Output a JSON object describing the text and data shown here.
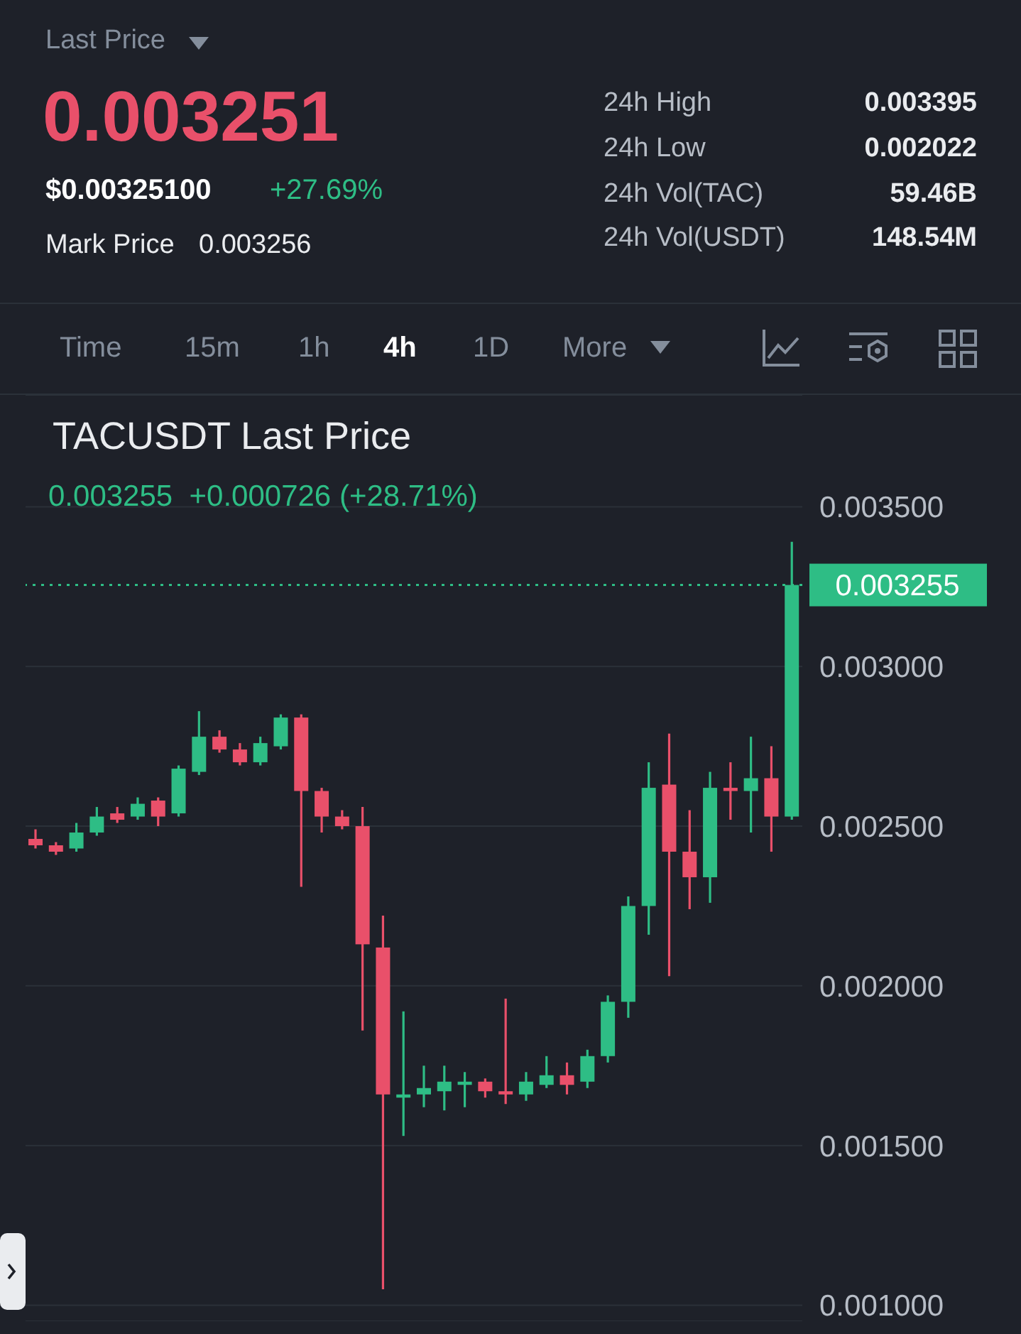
{
  "chart_data": {
    "type": "candlestick",
    "title": "TACUSDT Last Price",
    "subtitle": "0.003255  +0.000726 (+28.71%)",
    "annotations": [
      "Last Price",
      "0.003251",
      "$0.00325100",
      "+27.69%",
      "Mark Price",
      "0.003256",
      "24h High",
      "0.003395",
      "24h Low",
      "0.002022",
      "24h Vol(TAC)",
      "59.46B",
      "24h Vol(USDT)",
      "148.54M",
      "Time",
      "15m",
      "1h",
      "4h",
      "1D",
      "More"
    ],
    "categories": [
      null,
      null,
      null,
      null,
      null,
      null,
      null,
      null,
      null,
      null,
      null,
      null,
      null,
      null,
      null,
      null,
      null,
      null,
      null,
      null,
      null,
      null,
      null,
      null,
      null,
      null,
      null,
      null,
      null,
      null,
      null,
      null,
      null,
      null,
      null,
      null,
      null,
      null
    ],
    "ohlc": [
      [
        0.00246,
        0.00249,
        0.00243,
        0.00244
      ],
      [
        0.00244,
        0.00245,
        0.00241,
        0.00242
      ],
      [
        0.00243,
        0.00251,
        0.00242,
        0.00248
      ],
      [
        0.00248,
        0.00256,
        0.00247,
        0.00253
      ],
      [
        0.00254,
        0.00256,
        0.00251,
        0.00252
      ],
      [
        0.00253,
        0.00259,
        0.00252,
        0.00257
      ],
      [
        0.00258,
        0.00259,
        0.0025,
        0.00253
      ],
      [
        0.00254,
        0.00269,
        0.00253,
        0.00268
      ],
      [
        0.00267,
        0.00286,
        0.00266,
        0.00278
      ],
      [
        0.00278,
        0.0028,
        0.00273,
        0.00274
      ],
      [
        0.00274,
        0.00276,
        0.00269,
        0.0027
      ],
      [
        0.0027,
        0.00278,
        0.00269,
        0.00276
      ],
      [
        0.00275,
        0.00285,
        0.00274,
        0.00284
      ],
      [
        0.00284,
        0.00285,
        0.00231,
        0.00261
      ],
      [
        0.00261,
        0.00262,
        0.00248,
        0.00253
      ],
      [
        0.00253,
        0.00255,
        0.00249,
        0.0025
      ],
      [
        0.0025,
        0.00256,
        0.00186,
        0.00213
      ],
      [
        0.00212,
        0.00222,
        0.00105,
        0.00166
      ],
      [
        0.00165,
        0.00192,
        0.00153,
        0.00166
      ],
      [
        0.00166,
        0.00175,
        0.00162,
        0.00168
      ],
      [
        0.00167,
        0.00175,
        0.00161,
        0.0017
      ],
      [
        0.00169,
        0.00173,
        0.00162,
        0.0017
      ],
      [
        0.0017,
        0.00171,
        0.00165,
        0.00167
      ],
      [
        0.00167,
        0.00196,
        0.00163,
        0.00166
      ],
      [
        0.00166,
        0.00173,
        0.00164,
        0.0017
      ],
      [
        0.00169,
        0.00178,
        0.00168,
        0.00172
      ],
      [
        0.00172,
        0.00176,
        0.00166,
        0.00169
      ],
      [
        0.0017,
        0.0018,
        0.00168,
        0.00178
      ],
      [
        0.00178,
        0.00197,
        0.00176,
        0.00195
      ],
      [
        0.00195,
        0.00228,
        0.0019,
        0.00225
      ],
      [
        0.00225,
        0.0027,
        0.00216,
        0.00262
      ],
      [
        0.00263,
        0.00279,
        0.00203,
        0.00242
      ],
      [
        0.00242,
        0.00255,
        0.00224,
        0.00234
      ],
      [
        0.00234,
        0.00267,
        0.00226,
        0.00262
      ],
      [
        0.00262,
        0.0027,
        0.00252,
        0.00261
      ],
      [
        0.00261,
        0.00278,
        0.00248,
        0.00265
      ],
      [
        0.00265,
        0.00275,
        0.00242,
        0.00253
      ],
      [
        0.00253,
        0.00339,
        0.00252,
        0.003255
      ]
    ],
    "colors": [
      "#e9506a",
      "#e9506a",
      "#2ebd85",
      "#2ebd85",
      "#e9506a",
      "#2ebd85",
      "#e9506a",
      "#2ebd85",
      "#2ebd85",
      "#e9506a",
      "#e9506a",
      "#2ebd85",
      "#2ebd85",
      "#e9506a",
      "#e9506a",
      "#e9506a",
      "#e9506a",
      "#e9506a",
      "#2ebd85",
      "#2ebd85",
      "#2ebd85",
      "#2ebd85",
      "#e9506a",
      "#e9506a",
      "#2ebd85",
      "#2ebd85",
      "#e9506a",
      "#2ebd85",
      "#2ebd85",
      "#2ebd85",
      "#2ebd85",
      "#e9506a",
      "#e9506a",
      "#2ebd85",
      "#e9506a",
      "#2ebd85",
      "#e9506a",
      "#2ebd85"
    ],
    "ylim": [
      0.00095,
      0.00385
    ],
    "yticks": [
      {
        "value": 0.001,
        "label": "0.001000"
      },
      {
        "value": 0.0015,
        "label": "0.001500"
      },
      {
        "value": 0.002,
        "label": "0.002000"
      },
      {
        "value": 0.0025,
        "label": "0.002500"
      },
      {
        "value": 0.003,
        "label": "0.003000"
      },
      {
        "value": 0.0035,
        "label": "0.003500"
      }
    ],
    "ref_lines": [
      {
        "axis": "y",
        "value": 0.003255,
        "label": "0.003255",
        "color": "#2ebd85",
        "line_style": "dotted"
      }
    ],
    "grid": "y"
  }
}
